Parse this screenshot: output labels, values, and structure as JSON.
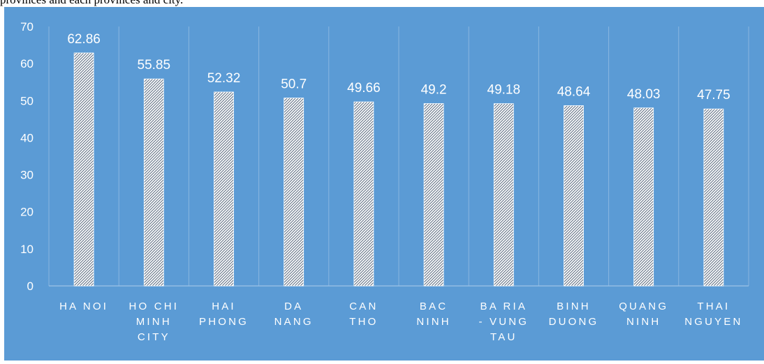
{
  "caption": "provinces and each provinces and city.",
  "colors": {
    "background": "#5b9bd5",
    "gridline": "#8ab6e0",
    "axis_line": "#9cc2e6",
    "text": "#ffffff",
    "bar_fill": "#ffffff",
    "bar_hatch": "#5f6f83"
  },
  "chart_data": {
    "type": "bar",
    "title": "",
    "xlabel": "",
    "ylabel": "",
    "ylim": [
      0,
      70
    ],
    "yticks": [
      0,
      10,
      20,
      30,
      40,
      50,
      60,
      70
    ],
    "grid": "vertical separators between categories",
    "legend": "none",
    "categories": [
      "HA NOI",
      "HO CHI MINH CITY",
      "HAI PHONG",
      "DA NANG",
      "CAN THO",
      "BAC NINH",
      "BA RIA - VUNG TAU",
      "BINH DUONG",
      "QUANG NINH",
      "THAI NGUYEN"
    ],
    "category_label_lines": [
      [
        "HA NOI"
      ],
      [
        "HO CHI",
        "MINH",
        "CITY"
      ],
      [
        "HAI",
        "PHONG"
      ],
      [
        "DA",
        "NANG"
      ],
      [
        "CAN",
        "THO"
      ],
      [
        "BAC",
        "NINH"
      ],
      [
        "BA RIA",
        "- VUNG",
        "TAU"
      ],
      [
        "BINH",
        "DUONG"
      ],
      [
        "QUANG",
        "NINH"
      ],
      [
        "THAI",
        "NGUYEN"
      ]
    ],
    "values": [
      62.86,
      55.85,
      52.32,
      50.7,
      49.66,
      49.2,
      49.18,
      48.64,
      48.03,
      47.75
    ],
    "data_labels": [
      "62.86",
      "55.85",
      "52.32",
      "50.7",
      "49.66",
      "49.2",
      "49.18",
      "48.64",
      "48.03",
      "47.75"
    ]
  }
}
